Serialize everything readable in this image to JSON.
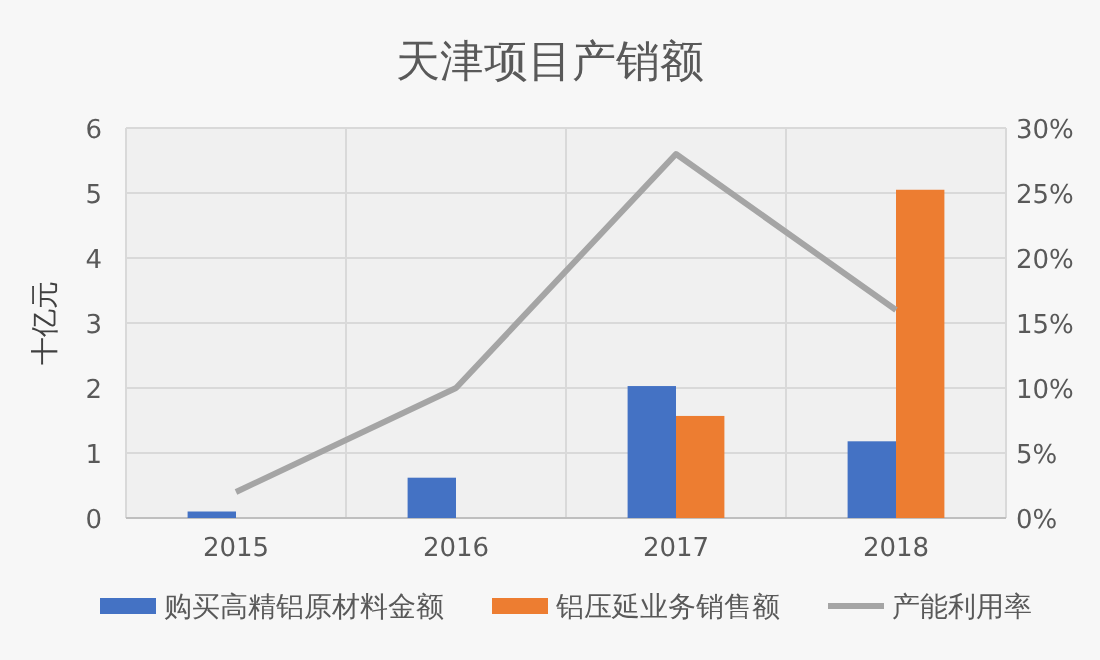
{
  "chart_data": {
    "type": "bar",
    "title": "天津项目产销额",
    "ylabel": "十亿元",
    "categories": [
      "2015",
      "2016",
      "2017",
      "2018"
    ],
    "series": [
      {
        "name": "购买高精铝原材料金额",
        "color": "#4472c4",
        "values": [
          0.1,
          0.62,
          2.03,
          1.18
        ]
      },
      {
        "name": "铝压延业务销售额",
        "color": "#ed7d31",
        "values": [
          null,
          null,
          1.57,
          5.05
        ]
      },
      {
        "name": "产能利用率",
        "type": "line",
        "axis": "y2",
        "color": "#a5a5a5",
        "values": [
          2,
          10,
          28,
          16
        ]
      }
    ],
    "ylim": [
      0,
      6
    ],
    "yticks": [
      0,
      1,
      2,
      3,
      4,
      5,
      6
    ],
    "y2lim": [
      0,
      30
    ],
    "y2ticks": [
      {
        "value": 0,
        "label": "0%"
      },
      {
        "value": 5,
        "label": "5%"
      },
      {
        "value": 10,
        "label": "10%"
      },
      {
        "value": 15,
        "label": "15%"
      },
      {
        "value": 20,
        "label": "20%"
      },
      {
        "value": 25,
        "label": "25%"
      },
      {
        "value": 30,
        "label": "30%"
      }
    ],
    "grid": true,
    "legend": "bottom"
  }
}
